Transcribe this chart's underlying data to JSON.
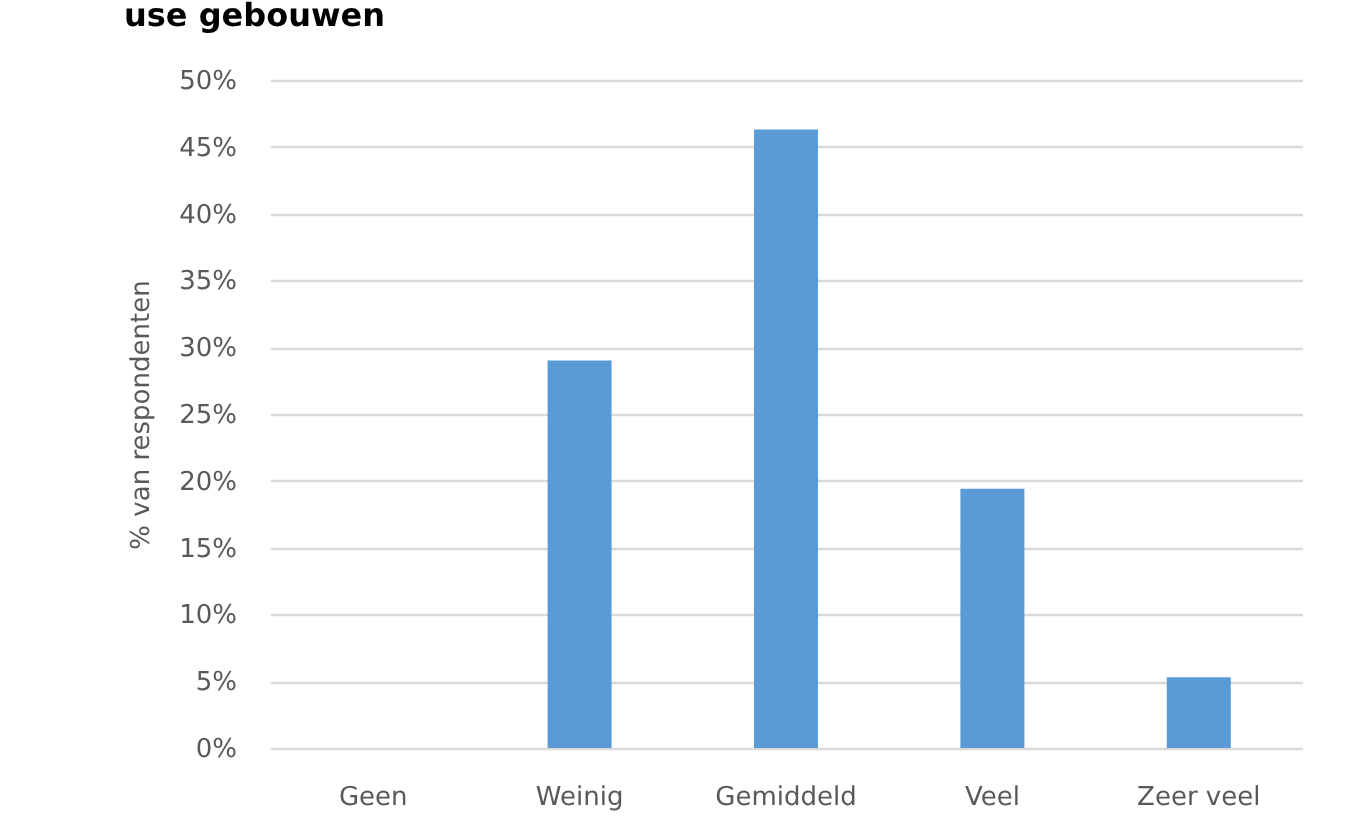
{
  "chart_data": {
    "type": "bar",
    "title": "use gebouwen",
    "ylabel": "% van respondenten",
    "categories": [
      "Geen",
      "Weinig",
      "Gemiddeld",
      "Veel",
      "Zeer veel"
    ],
    "values": [
      0,
      29.0,
      46.3,
      19.4,
      5.3
    ],
    "color": "#5b9bd5",
    "ylim": [
      0,
      50
    ],
    "yticks": [
      {
        "value": 0,
        "label": "0%"
      },
      {
        "value": 5,
        "label": "5%"
      },
      {
        "value": 10,
        "label": "10%"
      },
      {
        "value": 15,
        "label": "15%"
      },
      {
        "value": 20,
        "label": "20%"
      },
      {
        "value": 25,
        "label": "25%"
      },
      {
        "value": 30,
        "label": "30%"
      },
      {
        "value": 35,
        "label": "35%"
      },
      {
        "value": 40,
        "label": "40%"
      },
      {
        "value": 45,
        "label": "45%"
      },
      {
        "value": 50,
        "label": "50%"
      }
    ],
    "grid": "y"
  }
}
